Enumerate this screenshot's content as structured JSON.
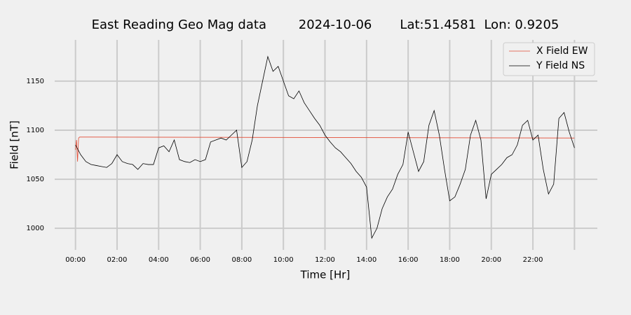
{
  "chart_data": {
    "type": "line",
    "title": "East Reading Geo Mag data        2024-10-06       Lat:51.4581  Lon: 0.9205",
    "x_label": "Time  [Hr]",
    "y_label": "Field  [nT]",
    "xlim": [
      -1,
      25.1
    ],
    "ylim": [
      978,
      1192
    ],
    "xticks": [
      {
        "value": 0,
        "label": "00:00"
      },
      {
        "value": 2,
        "label": "02:00"
      },
      {
        "value": 4,
        "label": "04:00"
      },
      {
        "value": 6,
        "label": "06:00"
      },
      {
        "value": 8,
        "label": "08:00"
      },
      {
        "value": 10,
        "label": "10:00"
      },
      {
        "value": 12,
        "label": "12:00"
      },
      {
        "value": 14,
        "label": "14:00"
      },
      {
        "value": 16,
        "label": "16:00"
      },
      {
        "value": 18,
        "label": "18:00"
      },
      {
        "value": 20,
        "label": "20:00"
      },
      {
        "value": 22,
        "label": "22:00"
      },
      {
        "value": 24,
        "label": null
      }
    ],
    "yticks": [
      1000,
      1050,
      1100,
      1150
    ],
    "grid": true,
    "legend": "upper right",
    "series": [
      {
        "name": "X Field EW",
        "color": "#e24a33",
        "x": [
          0,
          0.05,
          0.1,
          0.15,
          0.2,
          0.3,
          24
        ],
        "values": [
          1080,
          1090,
          1068,
          1092,
          1093,
          1093,
          1092
        ]
      },
      {
        "name": "Y Field NS",
        "color": "#000000",
        "x": [
          0,
          0.25,
          0.5,
          0.75,
          1,
          1.25,
          1.5,
          1.75,
          2,
          2.25,
          2.5,
          2.75,
          3,
          3.25,
          3.5,
          3.75,
          4,
          4.25,
          4.5,
          4.75,
          5,
          5.25,
          5.5,
          5.75,
          6,
          6.25,
          6.5,
          6.75,
          7,
          7.25,
          7.5,
          7.75,
          8,
          8.25,
          8.5,
          8.75,
          9,
          9.25,
          9.5,
          9.75,
          10,
          10.25,
          10.5,
          10.75,
          11,
          11.25,
          11.5,
          11.75,
          12,
          12.25,
          12.5,
          12.75,
          13,
          13.25,
          13.5,
          13.75,
          14,
          14.25,
          14.5,
          14.75,
          15,
          15.25,
          15.5,
          15.75,
          16,
          16.25,
          16.5,
          16.75,
          17,
          17.25,
          17.5,
          17.75,
          18,
          18.25,
          18.5,
          18.75,
          19,
          19.25,
          19.5,
          19.75,
          20,
          20.25,
          20.5,
          20.75,
          21,
          21.25,
          21.5,
          21.75,
          22,
          22.25,
          22.5,
          22.75,
          23,
          23.25,
          23.5,
          23.75,
          24
        ],
        "values": [
          1085,
          1075,
          1068,
          1065,
          1064,
          1063,
          1062,
          1066,
          1075,
          1068,
          1066,
          1065,
          1060,
          1066,
          1065,
          1065,
          1082,
          1084,
          1078,
          1090,
          1070,
          1068,
          1067,
          1070,
          1068,
          1070,
          1088,
          1090,
          1092,
          1090,
          1095,
          1100,
          1062,
          1068,
          1090,
          1125,
          1150,
          1175,
          1160,
          1165,
          1150,
          1135,
          1132,
          1140,
          1128,
          1120,
          1112,
          1105,
          1095,
          1088,
          1082,
          1078,
          1072,
          1066,
          1058,
          1052,
          1042,
          990,
          1000,
          1020,
          1032,
          1040,
          1055,
          1065,
          1098,
          1078,
          1058,
          1068,
          1105,
          1120,
          1095,
          1060,
          1028,
          1032,
          1045,
          1060,
          1095,
          1110,
          1090,
          1030,
          1055,
          1060,
          1065,
          1072,
          1075,
          1085,
          1105,
          1110,
          1090,
          1095,
          1060,
          1035,
          1045,
          1112,
          1118,
          1098,
          1082
        ]
      }
    ]
  }
}
